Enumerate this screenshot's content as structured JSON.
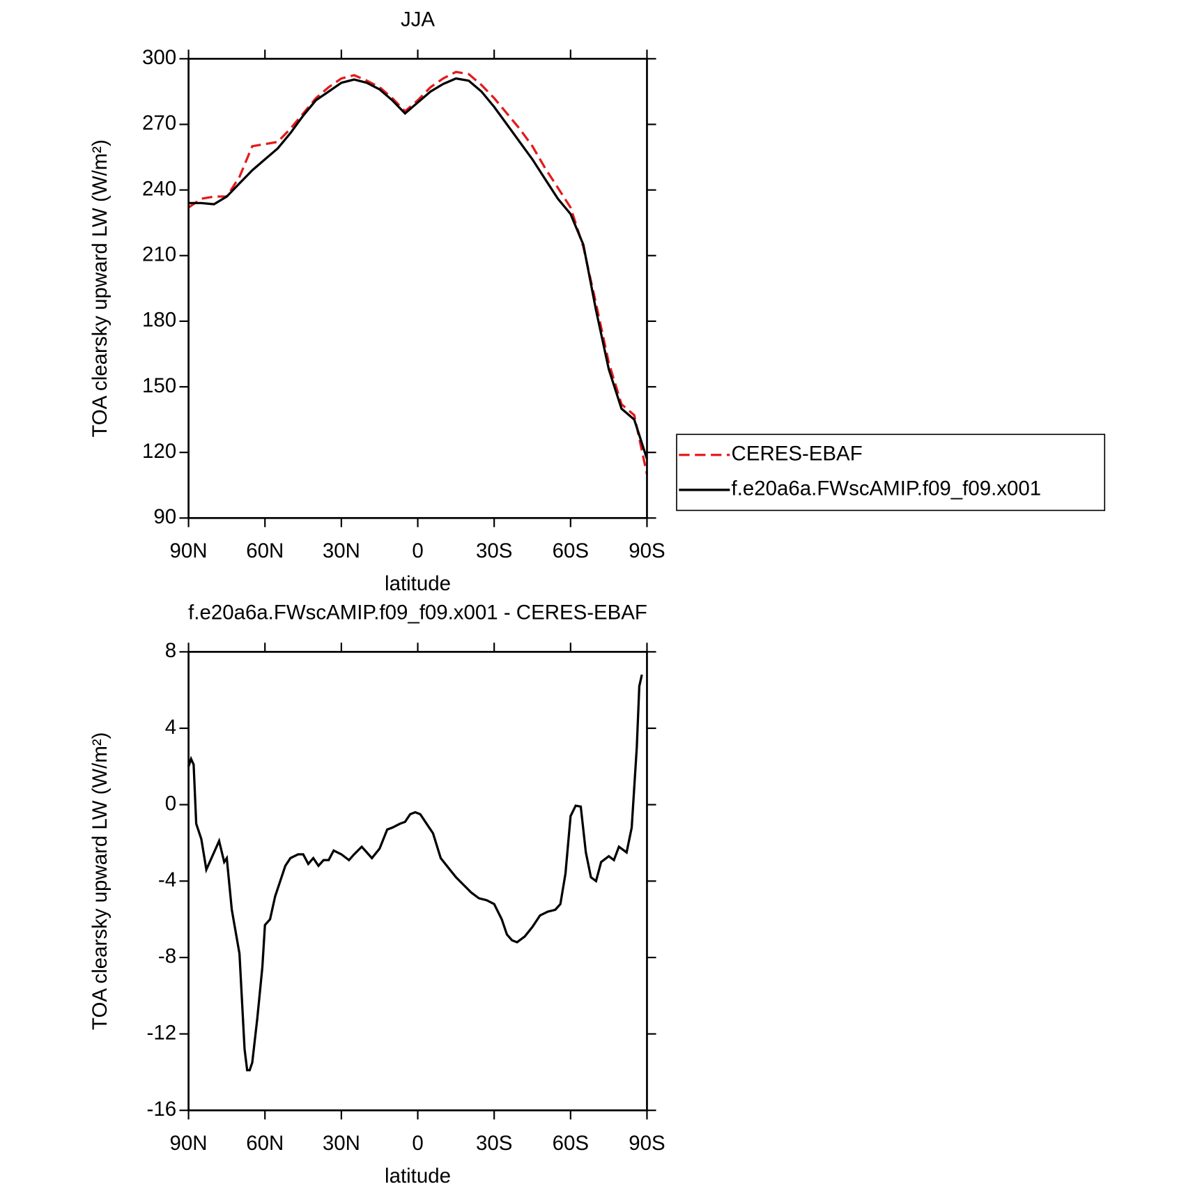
{
  "chart_data": [
    {
      "type": "line",
      "title": "JJA",
      "x_label": "latitude",
      "y_label": "TOA clearsky upward LW (W/m²)",
      "x": [
        90,
        85,
        80,
        75,
        70,
        65,
        60,
        55,
        50,
        45,
        40,
        35,
        30,
        25,
        20,
        15,
        10,
        5,
        0,
        -5,
        -10,
        -15,
        -20,
        -25,
        -30,
        -35,
        -40,
        -45,
        -50,
        -55,
        -60,
        -65,
        -70,
        -75,
        -80,
        -85,
        -90
      ],
      "series": [
        {
          "name": "CERES-EBAF",
          "color": "#e31a1c",
          "dashed": true,
          "values": [
            232,
            236,
            237,
            237,
            246,
            260,
            261,
            262,
            268,
            275,
            282,
            287,
            291,
            292.5,
            290,
            287,
            282,
            276,
            281,
            287,
            291,
            294,
            293,
            288,
            282,
            275,
            268,
            260,
            250,
            241,
            232,
            214,
            188,
            161,
            142,
            137,
            110
          ]
        },
        {
          "name": "f.e20a6a.FWscAMIP.f09_f09.x001",
          "color": "#000000",
          "dashed": false,
          "values": [
            234,
            234,
            233.5,
            237,
            243,
            249,
            254,
            259,
            266,
            274,
            281,
            285,
            289,
            290.5,
            289,
            286,
            281,
            275,
            280,
            285,
            288.5,
            291,
            290,
            285,
            278,
            270,
            262,
            254,
            245,
            236,
            229,
            215,
            185,
            158,
            140,
            135,
            117
          ]
        }
      ],
      "xlim": [
        90,
        -90
      ],
      "xticks": [
        {
          "value": 90,
          "label": "90N"
        },
        {
          "value": 60,
          "label": "60N"
        },
        {
          "value": 30,
          "label": "30N"
        },
        0,
        {
          "value": -30,
          "label": "30S"
        },
        {
          "value": -60,
          "label": "60S"
        },
        {
          "value": -90,
          "label": "90S"
        }
      ],
      "ylim": [
        90,
        300
      ],
      "yticks": [
        90,
        120,
        150,
        180,
        210,
        240,
        270,
        300
      ],
      "legend": "outside-right"
    },
    {
      "type": "line",
      "title": "f.e20a6a.FWscAMIP.f09_f09.x001 - CERES-EBAF",
      "x_label": "latitude",
      "y_label": "TOA clearsky upward LW (W/m²)",
      "x": [
        90,
        89,
        88,
        87,
        85,
        83,
        80,
        78,
        76,
        75,
        73,
        70,
        68,
        67,
        66,
        65,
        63,
        61,
        60,
        58,
        56,
        54,
        52,
        50,
        47,
        45,
        43,
        41,
        39,
        37,
        35,
        33,
        30,
        27,
        25,
        22,
        20,
        18,
        15,
        12,
        10,
        7,
        5,
        3,
        1,
        -1,
        -3,
        -6,
        -9,
        -12,
        -15,
        -18,
        -21,
        -24,
        -27,
        -30,
        -33,
        -35,
        -37,
        -39,
        -42,
        -45,
        -48,
        -51,
        -54,
        -56,
        -58,
        -60,
        -62,
        -64,
        -66,
        -68,
        -70,
        -72,
        -75,
        -77,
        -79,
        -82,
        -84,
        -86,
        -87,
        -88
      ],
      "values": [
        2,
        2.4,
        2.1,
        -1,
        -1.8,
        -3.4,
        -2.5,
        -1.9,
        -3,
        -2.8,
        -5.5,
        -7.8,
        -12.8,
        -13.9,
        -13.9,
        -13.5,
        -11.2,
        -8.5,
        -6.3,
        -6,
        -4.8,
        -4,
        -3.2,
        -2.8,
        -2.6,
        -2.6,
        -3.1,
        -2.8,
        -3.2,
        -2.9,
        -2.9,
        -2.4,
        -2.6,
        -2.9,
        -2.6,
        -2.2,
        -2.5,
        -2.8,
        -2.3,
        -1.3,
        -1.2,
        -1,
        -0.9,
        -0.5,
        -0.4,
        -0.5,
        -0.9,
        -1.5,
        -2.8,
        -3.3,
        -3.8,
        -4.2,
        -4.6,
        -4.9,
        -5,
        -5.2,
        -6,
        -6.8,
        -7.1,
        -7.2,
        -6.9,
        -6.4,
        -5.8,
        -5.6,
        -5.5,
        -5.2,
        -3.6,
        -0.6,
        -0.05,
        -0.1,
        -2.5,
        -3.8,
        -4,
        -3,
        -2.7,
        -2.9,
        -2.2,
        -2.5,
        -1.2,
        3,
        6.2,
        6.8
      ],
      "color": "#000000",
      "xlim": [
        90,
        -90
      ],
      "xticks": [
        {
          "value": 90,
          "label": "90N"
        },
        {
          "value": 60,
          "label": "60N"
        },
        {
          "value": 30,
          "label": "30N"
        },
        0,
        {
          "value": -30,
          "label": "30S"
        },
        {
          "value": -60,
          "label": "60S"
        },
        {
          "value": -90,
          "label": "90S"
        }
      ],
      "ylim": [
        -16,
        8
      ],
      "yticks": [
        -16,
        -12,
        -8,
        -4,
        0,
        4,
        8
      ]
    }
  ]
}
